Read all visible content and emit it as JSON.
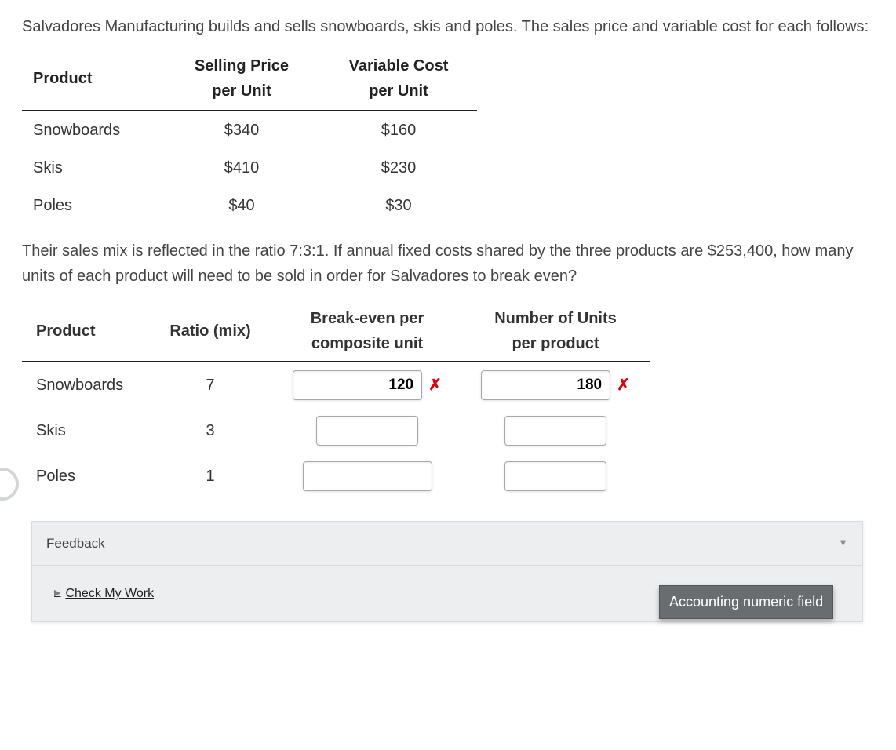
{
  "intro_text": "Salvadores Manufacturing builds and sells snowboards, skis and poles. The sales price and variable cost for each follows:",
  "price_table": {
    "headers": {
      "product": "Product",
      "selling": "Selling Price\nper Unit",
      "variable": "Variable Cost\nper Unit"
    },
    "rows": [
      {
        "product": "Snowboards",
        "selling": "$340",
        "variable": "$160"
      },
      {
        "product": "Skis",
        "selling": "$410",
        "variable": "$230"
      },
      {
        "product": "Poles",
        "selling": "$40",
        "variable": "$30"
      }
    ]
  },
  "question_text": "Their sales mix is reflected in the ratio 7:3:1. If annual fixed costs shared by the three products are $253,400, how many units of each product will need to be sold in order for Salvadores to break even?",
  "answer_table": {
    "headers": {
      "product": "Product",
      "ratio": "Ratio (mix)",
      "breakeven": "Break-even per\ncomposite unit",
      "units": "Number of Units\nper product"
    },
    "rows": [
      {
        "product": "Snowboards",
        "ratio": "7",
        "breakeven_val": "120",
        "breakeven_mark": "✗",
        "units_val": "180",
        "units_mark": "✗",
        "be_width": "wide",
        "u_width": "wide"
      },
      {
        "product": "Skis",
        "ratio": "3",
        "breakeven_val": "",
        "breakeven_mark": "",
        "units_val": "",
        "units_mark": "",
        "be_width": "narrow",
        "u_width": "narrow"
      },
      {
        "product": "Poles",
        "ratio": "1",
        "breakeven_val": "",
        "breakeven_mark": "",
        "units_val": "",
        "units_mark": "",
        "be_width": "wide",
        "u_width": "narrow"
      }
    ]
  },
  "tooltip_text": "Accounting numeric field",
  "feedback": {
    "title": "Feedback",
    "check_label": "Check My Work"
  },
  "colors": {
    "wrong": "#d9000d",
    "tooltip_bg": "#6a6d70",
    "panel_bg": "#eceeef"
  }
}
